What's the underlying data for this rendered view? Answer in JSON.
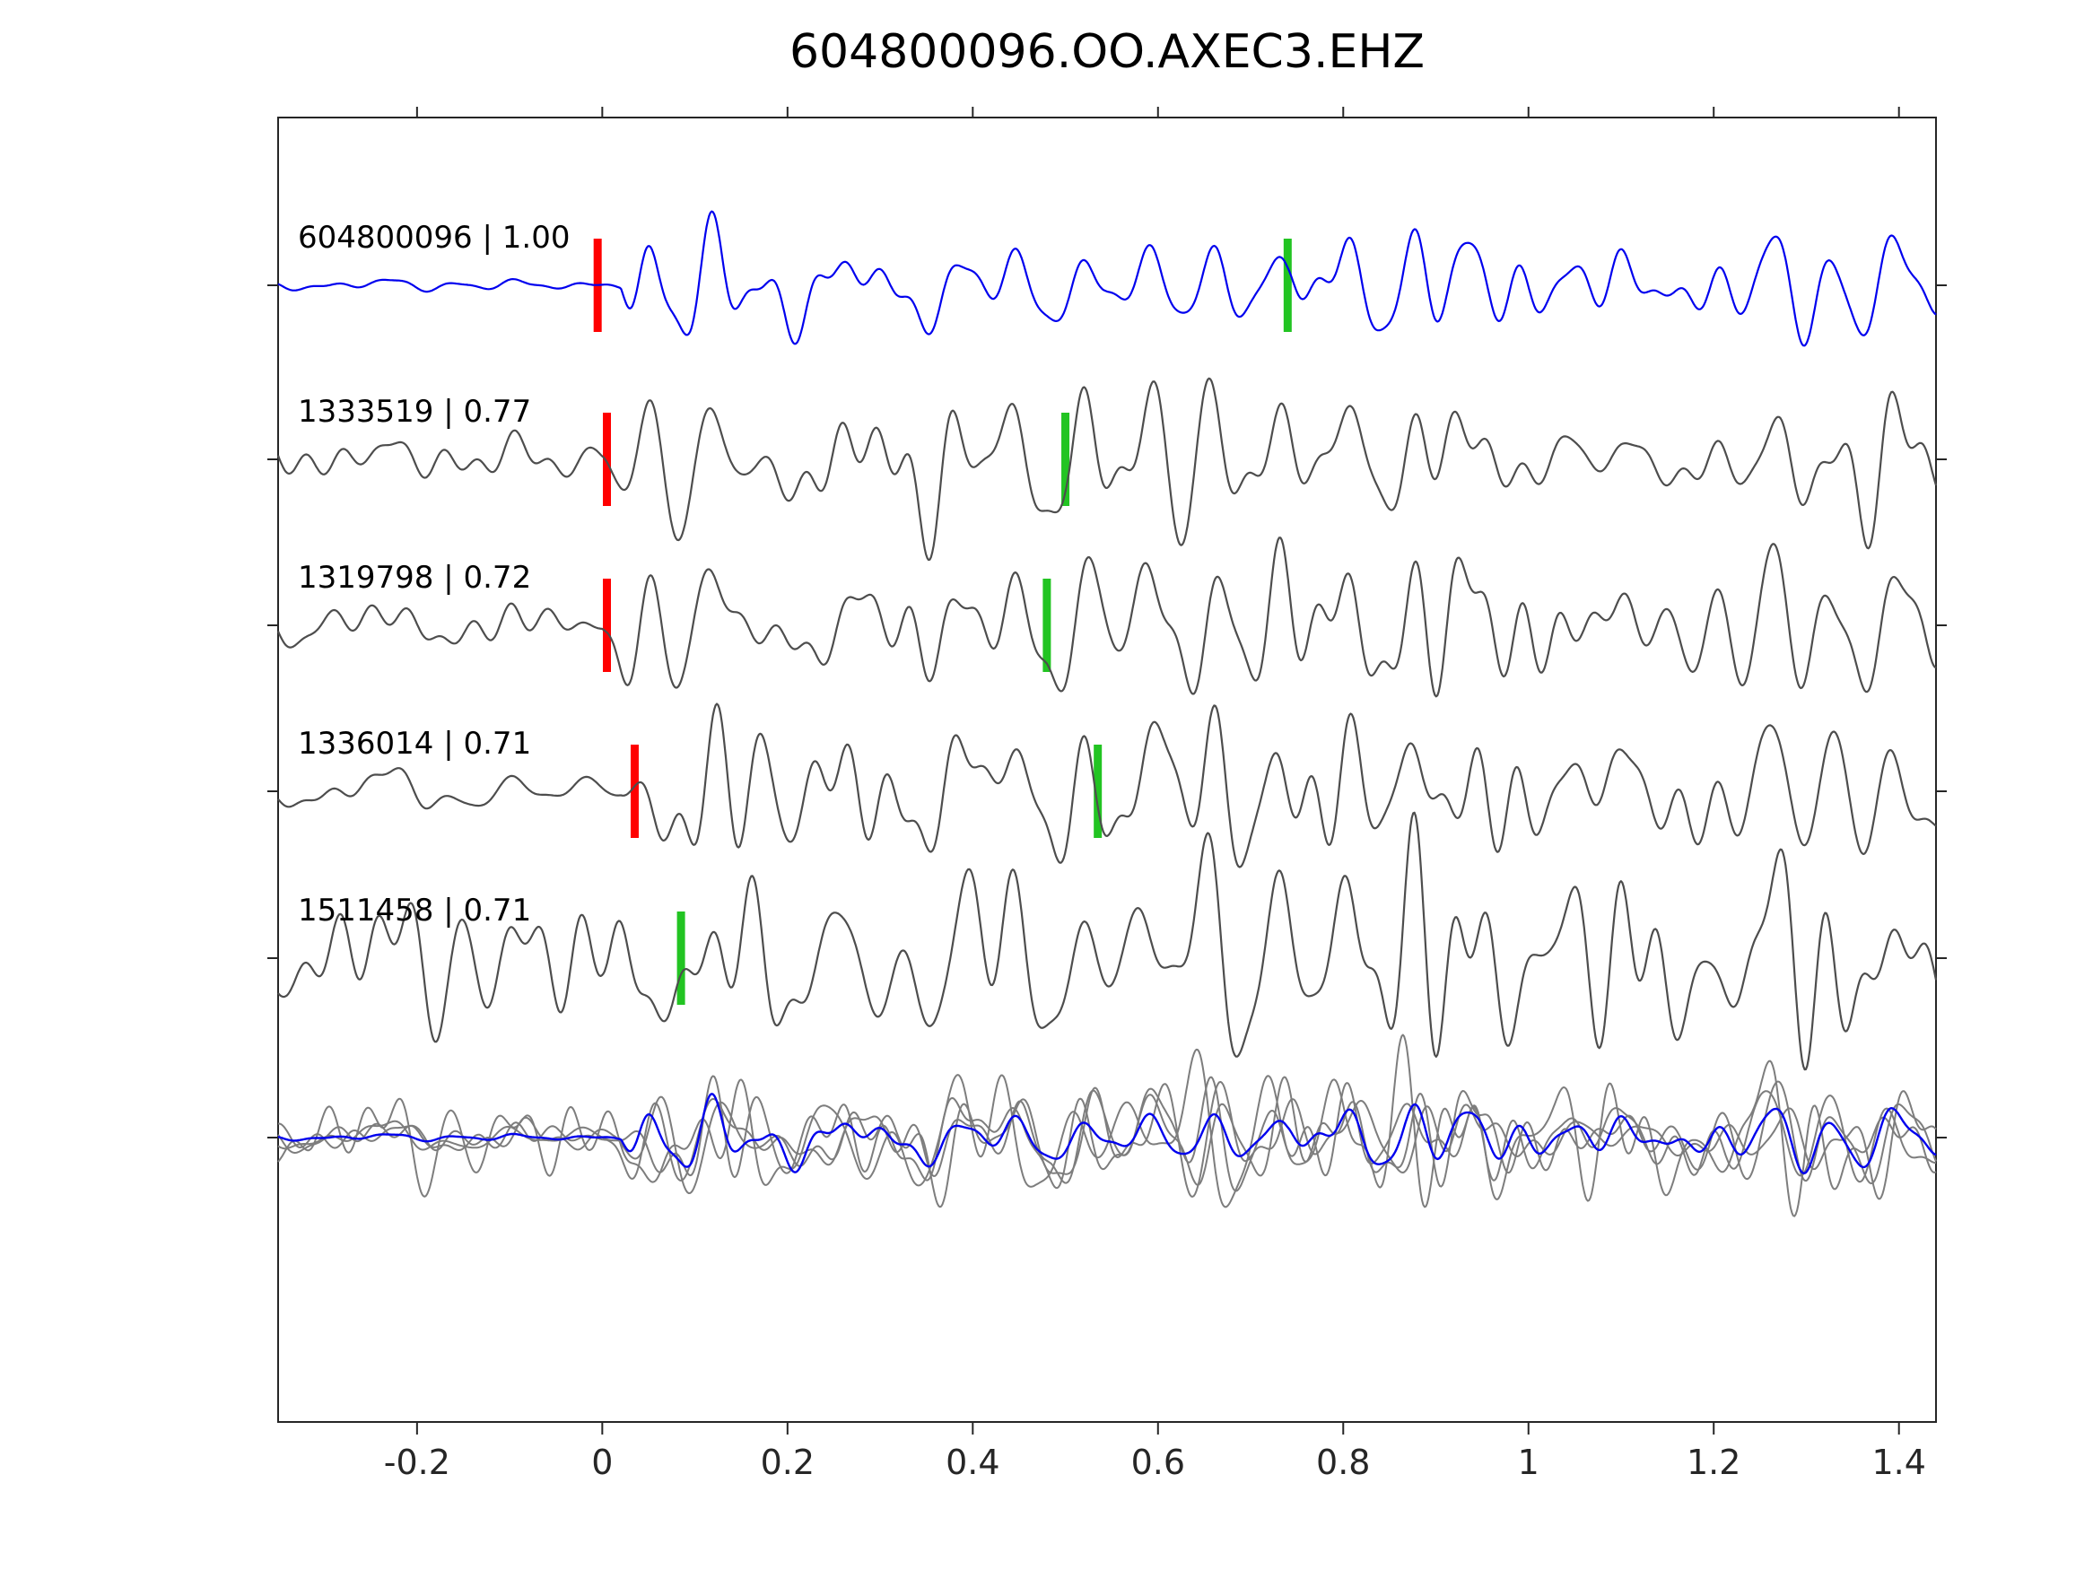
{
  "title": "604800096.OO.AXEC3.EHZ",
  "colors": {
    "template": "#0000ee",
    "detection": "#4d4d4d",
    "overlay_gray": "#7d7d7d",
    "pick_red": "#ff0000",
    "pick_green": "#22c422",
    "axis": "#262626",
    "text": "#000000",
    "background": "#ffffff"
  },
  "chart_data": {
    "type": "line",
    "title": "604800096.OO.AXEC3.EHZ",
    "xlabel": "",
    "ylabel": "",
    "grid": false,
    "legend": false,
    "x_axis": {
      "min": -0.35,
      "max": 1.44,
      "ticks": [
        -0.2,
        0,
        0.2,
        0.4,
        0.6,
        0.8,
        1.0,
        1.2,
        1.4
      ],
      "tick_labels": [
        "-0.2",
        "0",
        "0.2",
        "0.4",
        "0.6",
        "0.8",
        "1",
        "1.2",
        "1.4"
      ]
    },
    "traces": [
      {
        "event_id": "604800096",
        "correlation": 1.0,
        "label": "604800096 | 1.00",
        "role": "template",
        "picks": {
          "red": -0.005,
          "green": 0.74
        },
        "synth": {
          "seed": 604800096,
          "pre": 0.07,
          "onset": 0.02,
          "attack": 0.025,
          "peak": 1.35,
          "decay": 0.13,
          "coda": 0.3,
          "s_peak": 0.38,
          "s_decay": 0.3,
          "s_onset": 0.74,
          "mix": 1.0,
          "amp": 105
        }
      },
      {
        "event_id": "1333519",
        "correlation": 0.77,
        "label": "1333519 | 0.77",
        "role": "detection",
        "picks": {
          "red": 0.005,
          "green": 0.5
        },
        "synth": {
          "seed": 1333519,
          "pre": 0.36,
          "onset": 0.0,
          "attack": 0.02,
          "peak": 1.1,
          "decay": 0.22,
          "coda": 0.58,
          "s_peak": 0.45,
          "s_decay": 0.35,
          "s_onset": 0.5,
          "mix": 0.6,
          "amp": 90
        }
      },
      {
        "event_id": "1319798",
        "correlation": 0.72,
        "label": "1319798 | 0.72",
        "role": "detection",
        "picks": {
          "red": 0.005,
          "green": 0.48
        },
        "synth": {
          "seed": 1319798,
          "pre": 0.38,
          "onset": 0.0,
          "attack": 0.02,
          "peak": 1.2,
          "decay": 0.2,
          "coda": 0.55,
          "s_peak": 0.4,
          "s_decay": 0.35,
          "s_onset": 0.48,
          "mix": 0.58,
          "amp": 90
        }
      },
      {
        "event_id": "1336014",
        "correlation": 0.71,
        "label": "1336014 | 0.71",
        "role": "detection",
        "picks": {
          "red": 0.035,
          "green": 0.535
        },
        "synth": {
          "seed": 1336014,
          "pre": 0.42,
          "onset": 0.02,
          "attack": 0.02,
          "peak": 1.05,
          "decay": 0.25,
          "coda": 0.58,
          "s_peak": 0.45,
          "s_decay": 0.35,
          "s_onset": 0.535,
          "mix": 0.55,
          "amp": 88
        }
      },
      {
        "event_id": "1511458",
        "correlation": 0.71,
        "label": "1511458 | 0.71",
        "role": "detection",
        "picks": {
          "red": null,
          "green": 0.085
        },
        "synth": {
          "seed": 1511458,
          "pre": 1.0,
          "onset": 0.0,
          "attack": 0.03,
          "peak": 1.05,
          "decay": 0.3,
          "coda": 0.6,
          "s_peak": 0.4,
          "s_decay": 0.4,
          "s_onset": 0.085,
          "mix": 0.45,
          "amp": 88
        }
      }
    ],
    "overlay_row": {
      "description": "all detections overlaid (gray) with template (blue)",
      "amp": 62,
      "jitter": [
        -0.012,
        -0.005,
        0.004,
        0.012
      ]
    }
  }
}
